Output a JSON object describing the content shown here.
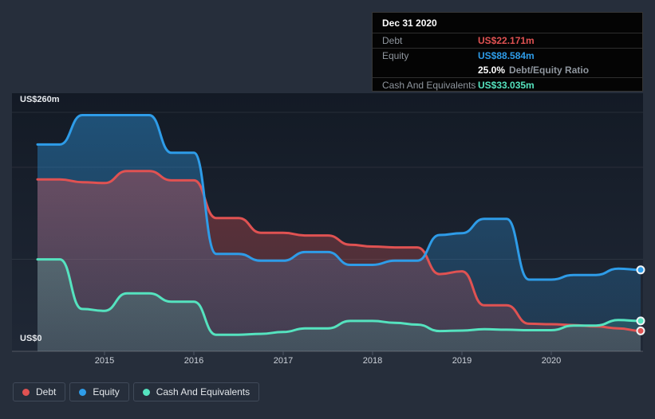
{
  "axis": {
    "y_max_label": "US$260m",
    "y_min_label": "US$0"
  },
  "tooltip": {
    "title": "Dec 31 2020",
    "debt_label": "Debt",
    "debt_value": "US$22.171m",
    "equity_label": "Equity",
    "equity_value": "US$88.584m",
    "ratio_value": "25.0%",
    "ratio_label": "Debt/Equity Ratio",
    "cash_label": "Cash And Equivalents",
    "cash_value": "US$33.035m"
  },
  "legend": {
    "items": [
      {
        "label": "Debt"
      },
      {
        "label": "Equity"
      },
      {
        "label": "Cash And Equivalents"
      }
    ]
  },
  "colors": {
    "background": "#262e3b",
    "plot_background_top": "#131a25",
    "plot_background_bottom": "#202836",
    "gridline": "rgba(255,255,255,0.08)",
    "axis_line": "rgba(255,255,255,0.22)",
    "tick": "#4d5665",
    "dot_ring": "#f1f4f6"
  },
  "chart_data": {
    "type": "area",
    "x": [
      "2014 Q1",
      "2014 Q2",
      "2014 Q3",
      "2014 Q4",
      "2015 Q1",
      "2015 Q2",
      "2015 Q3",
      "2015 Q4",
      "2016 Q1",
      "2016 Q2",
      "2016 Q3",
      "2016 Q4",
      "2017 Q1",
      "2017 Q2",
      "2017 Q3",
      "2017 Q4",
      "2018 Q1",
      "2018 Q2",
      "2018 Q3",
      "2018 Q4",
      "2019 Q1",
      "2019 Q2",
      "2019 Q3",
      "2019 Q4",
      "2020 Q1",
      "2020 Q2",
      "2020 Q3",
      "2020 Q4"
    ],
    "series": [
      {
        "name": "Debt",
        "color": "#e05252",
        "values": [
          187,
          187,
          184,
          183,
          196,
          196,
          186,
          186,
          145,
          145,
          129,
          129,
          126,
          126,
          116,
          114,
          113,
          113,
          84,
          87,
          50,
          50,
          30,
          29.5,
          28.5,
          27,
          25,
          22.171
        ]
      },
      {
        "name": "Equity",
        "color": "#2e9ce8",
        "values": [
          225,
          225,
          257,
          257,
          257,
          257,
          216,
          216,
          106,
          106,
          98.5,
          98.5,
          108,
          108,
          94,
          94,
          98.5,
          98.5,
          126.5,
          128.5,
          144,
          144,
          78,
          78,
          83,
          83,
          90,
          88.584
        ]
      },
      {
        "name": "Cash And Equivalents",
        "color": "#55e3bf",
        "values": [
          100,
          100,
          46,
          44,
          63,
          63,
          54,
          54,
          18,
          18,
          19,
          21,
          25,
          25,
          33,
          33,
          31,
          29,
          22,
          22.5,
          24,
          23.5,
          23,
          23,
          28,
          28,
          34,
          33.035
        ]
      }
    ],
    "ylim": [
      0,
      260
    ],
    "ytick_values": [
      260,
      200,
      100,
      0
    ],
    "x_year_ticks": [
      2015,
      2016,
      2017,
      2018,
      2019,
      2020
    ],
    "grid": "horizontal",
    "legend_position": "bottom-left",
    "unit": "US$m"
  }
}
